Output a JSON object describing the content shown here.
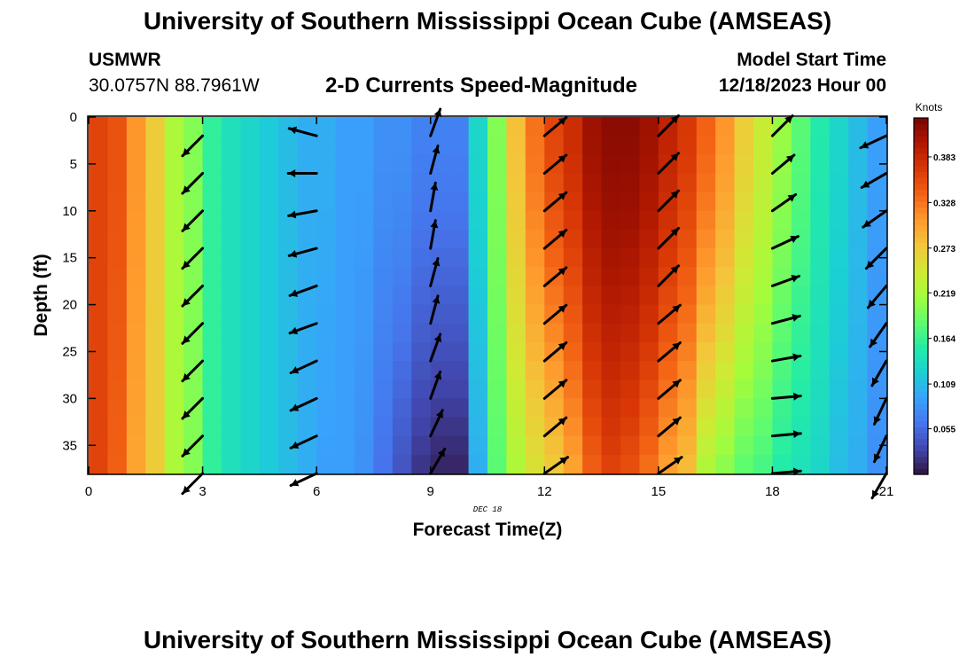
{
  "header": {
    "title": "University of Southern Mississippi Ocean Cube (AMSEAS)",
    "station": "USMWR",
    "coords": "30.0757N  88.7961W",
    "plot_title": "2-D Currents Speed-Magnitude",
    "start_label": "Model Start Time",
    "start_value": "12/18/2023 Hour 00"
  },
  "footer": {
    "title": "University of Southern Mississippi Ocean Cube (AMSEAS)"
  },
  "colors": {
    "colormap": [
      "#30123b",
      "#4145ab",
      "#4675ed",
      "#39a2fc",
      "#1bcfd4",
      "#24eca6",
      "#61fc6c",
      "#a4fc3b",
      "#d1e834",
      "#f3c63a",
      "#fe9b2d",
      "#f36315",
      "#d93806",
      "#b11901",
      "#7a0402"
    ],
    "arrow": "#000000"
  },
  "chart_data": {
    "type": "heatmap",
    "title": "2-D Currents Speed-Magnitude",
    "xlabel": "Forecast Time(Z)",
    "ylabel": "Depth (ft)",
    "date_label": "DEC 18",
    "xlim": [
      0,
      21
    ],
    "ylim": [
      38,
      0
    ],
    "x_ticks": [
      0,
      3,
      6,
      9,
      12,
      15,
      18,
      21
    ],
    "x_tick_labels": [
      "0",
      "3",
      "6",
      "9",
      "12",
      "15",
      "18",
      "21"
    ],
    "y_ticks": [
      0,
      5,
      10,
      15,
      20,
      25,
      30,
      35
    ],
    "y_tick_labels": [
      "0",
      "5",
      "10",
      "15",
      "20",
      "25",
      "30",
      "35"
    ],
    "colorbar": {
      "label": "Knots",
      "range": [
        0.0,
        0.43
      ],
      "ticks": [
        0.055,
        0.109,
        0.164,
        0.219,
        0.273,
        0.328,
        0.383
      ],
      "tick_labels": [
        "0.055",
        "0.109",
        "0.164",
        "0.219",
        "0.273",
        "0.328",
        "0.383"
      ]
    },
    "time_steps_h": [
      0,
      0.5,
      1,
      1.5,
      2,
      2.5,
      3,
      3.5,
      4,
      4.5,
      5,
      5.5,
      6,
      6.5,
      7,
      7.5,
      8,
      8.5,
      9,
      9.5,
      10,
      10.5,
      11,
      11.5,
      12,
      12.5,
      13,
      13.5,
      14,
      14.5,
      15,
      15.5,
      16,
      16.5,
      17,
      17.5,
      18,
      18.5,
      19,
      19.5,
      20,
      20.5
    ],
    "speed_surface_kt": [
      0.36,
      0.35,
      0.31,
      0.27,
      0.22,
      0.2,
      0.16,
      0.14,
      0.13,
      0.12,
      0.11,
      0.1,
      0.1,
      0.09,
      0.09,
      0.08,
      0.08,
      0.07,
      0.07,
      0.07,
      0.13,
      0.2,
      0.28,
      0.33,
      0.36,
      0.38,
      0.41,
      0.42,
      0.42,
      0.41,
      0.39,
      0.37,
      0.34,
      0.31,
      0.27,
      0.24,
      0.21,
      0.18,
      0.15,
      0.13,
      0.11,
      0.09
    ],
    "speed_bottom_kt": [
      0.36,
      0.34,
      0.3,
      0.27,
      0.22,
      0.2,
      0.16,
      0.14,
      0.13,
      0.12,
      0.11,
      0.1,
      0.09,
      0.09,
      0.08,
      0.06,
      0.04,
      0.02,
      0.01,
      0.01,
      0.1,
      0.18,
      0.22,
      0.25,
      0.27,
      0.3,
      0.34,
      0.36,
      0.35,
      0.33,
      0.3,
      0.28,
      0.22,
      0.2,
      0.18,
      0.17,
      0.15,
      0.14,
      0.13,
      0.11,
      0.1,
      0.08
    ],
    "arrows": {
      "times_h": [
        3,
        6,
        9,
        12,
        15,
        18,
        21
      ],
      "depths_ft": [
        2,
        6,
        10,
        14,
        18,
        22,
        26,
        30,
        34,
        38
      ],
      "direction_deg": [
        [
          315,
          315,
          315,
          315,
          315,
          315,
          315,
          315,
          315,
          315
        ],
        [
          255,
          270,
          280,
          285,
          290,
          290,
          295,
          295,
          295,
          295
        ],
        [
          160,
          165,
          170,
          170,
          165,
          165,
          160,
          160,
          155,
          150
        ],
        [
          130,
          130,
          130,
          130,
          130,
          130,
          130,
          130,
          130,
          125
        ],
        [
          135,
          135,
          135,
          135,
          135,
          130,
          130,
          130,
          130,
          125
        ],
        [
          135,
          130,
          125,
          115,
          110,
          105,
          100,
          95,
          95,
          95
        ],
        [
          295,
          300,
          305,
          315,
          320,
          325,
          330,
          335,
          335,
          330
        ]
      ]
    }
  }
}
